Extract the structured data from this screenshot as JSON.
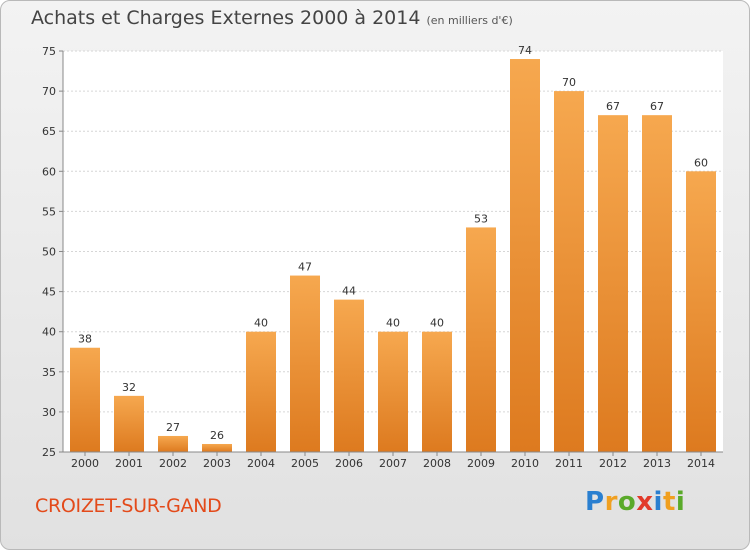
{
  "chart_data": {
    "type": "bar",
    "title": "Achats et Charges Externes 2000 à 2014",
    "subtitle": "(en milliers d'€)",
    "categories": [
      "2000",
      "2001",
      "2002",
      "2003",
      "2004",
      "2005",
      "2006",
      "2007",
      "2008",
      "2009",
      "2010",
      "2011",
      "2012",
      "2013",
      "2014"
    ],
    "values": [
      38,
      32,
      27,
      26,
      40,
      47,
      44,
      40,
      40,
      53,
      74,
      70,
      67,
      67,
      60
    ],
    "ylim": [
      25,
      75
    ],
    "yticks": [
      25,
      30,
      35,
      40,
      45,
      50,
      55,
      60,
      65,
      70,
      75
    ],
    "grid": true,
    "bar_color": "#f0923a"
  },
  "footer": {
    "town": "CROIZET-SUR-GAND",
    "logo_letters": [
      {
        "ch": "P",
        "color": "#2a7fd0"
      },
      {
        "ch": "r",
        "color": "#f0a020"
      },
      {
        "ch": "o",
        "color": "#5aaa2a"
      },
      {
        "ch": "x",
        "color": "#e23a2a"
      },
      {
        "ch": "i",
        "color": "#2a7fd0"
      },
      {
        "ch": "t",
        "color": "#f0a020"
      },
      {
        "ch": "i",
        "color": "#5aaa2a"
      }
    ]
  }
}
